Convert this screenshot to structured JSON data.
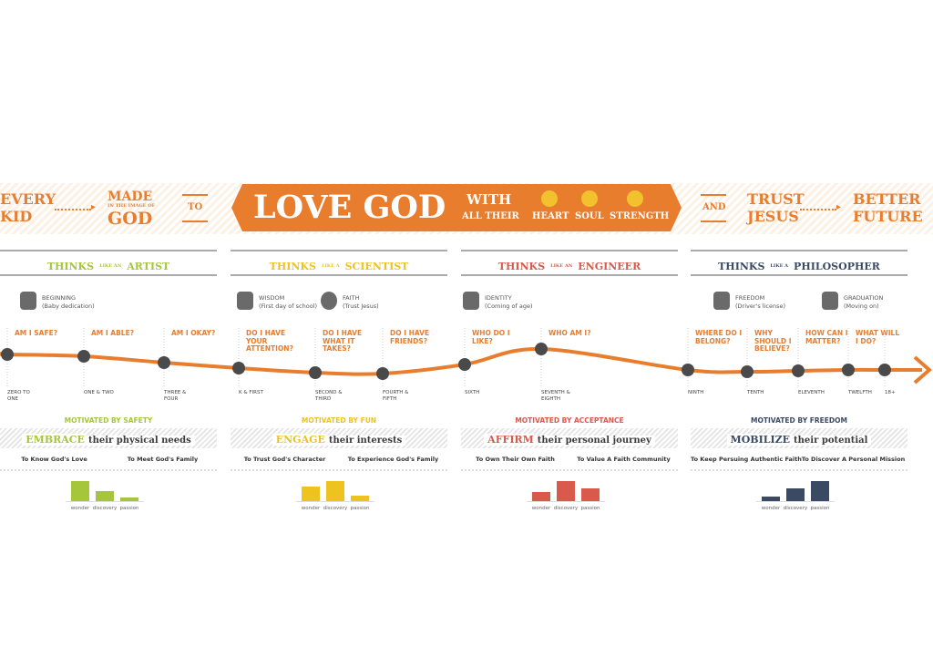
{
  "header": {
    "left_top": "EVERY",
    "left_bottom": "KID",
    "made": "MADE",
    "image_of": "IN THE IMAGE OF",
    "god": "GOD",
    "to": "TO",
    "banner": "LOVE GOD",
    "with": "WITH",
    "all_their": "ALL THEIR",
    "heart": "HEART",
    "soul": "SOUL",
    "strength": "STRENGTH",
    "and": "AND",
    "trust": "TRUST",
    "jesus": "JESUS",
    "better": "BETTER",
    "future": "FUTURE"
  },
  "phases": [
    {
      "thinks": "THINKS",
      "like": "LIKE AN",
      "role": "ARTIST",
      "color": "#a5c63b",
      "milestones": [
        {
          "title": "BEGINNING",
          "note": "(Baby dedication)"
        }
      ],
      "motivation": "MOTIVATED BY SAFETY",
      "verb": "EMBRACE",
      "focus": "their physical needs",
      "goals": [
        "To Know God's Love",
        "To Meet God's Family"
      ],
      "bars": {
        "labels": [
          "wonder",
          "discovery",
          "passion"
        ],
        "values": [
          22,
          11,
          4
        ]
      }
    },
    {
      "thinks": "THINKS",
      "like": "LIKE A",
      "role": "SCIENTIST",
      "color": "#eec21f",
      "milestones": [
        {
          "title": "WISDOM",
          "note": "(First day of school)"
        },
        {
          "title": "FAITH",
          "note": "(Trust Jesus)"
        }
      ],
      "motivation": "MOTIVATED BY FUN",
      "verb": "ENGAGE",
      "focus": "their interests",
      "goals": [
        "To Trust God's Character",
        "To Experience God's Family"
      ],
      "bars": {
        "labels": [
          "wonder",
          "discovery",
          "passion"
        ],
        "values": [
          16,
          22,
          6
        ]
      }
    },
    {
      "thinks": "THINKS",
      "like": "LIKE AN",
      "role": "ENGINEER",
      "color": "#d9594c",
      "milestones": [
        {
          "title": "IDENTITY",
          "note": "(Coming of age)"
        }
      ],
      "motivation": "MOTIVATED BY ACCEPTANCE",
      "verb": "AFFIRM",
      "focus": "their personal journey",
      "goals": [
        "To Own Their Own Faith",
        "To Value A Faith Community"
      ],
      "bars": {
        "labels": [
          "wonder",
          "discovery",
          "passion"
        ],
        "values": [
          10,
          22,
          14
        ]
      }
    },
    {
      "thinks": "THINKS",
      "like": "LIKE A",
      "role": "PHILOSOPHER",
      "color": "#3b4a63",
      "milestones": [
        {
          "title": "FREEDOM",
          "note": "(Driver's license)"
        },
        {
          "title": "GRADUATION",
          "note": "(Moving on)"
        }
      ],
      "motivation": "MOTIVATED BY FREEDOM",
      "verb": "MOBILIZE",
      "focus": "their potential",
      "goals": [
        "To Keep Persuing Authentic Faith",
        "To Discover A Personal Mission"
      ],
      "bars": {
        "labels": [
          "wonder",
          "discovery",
          "passion"
        ],
        "values": [
          5,
          14,
          22
        ]
      }
    }
  ],
  "timeline": [
    {
      "question": "AM I SAFE?",
      "age": "ZERO TO ONE"
    },
    {
      "question": "AM I ABLE?",
      "age": "ONE & TWO"
    },
    {
      "question": "AM I OKAY?",
      "age": "THREE & FOUR"
    },
    {
      "question": "DO I HAVE YOUR ATTENTION?",
      "age": "K & FIRST"
    },
    {
      "question": "DO I HAVE WHAT IT TAKES?",
      "age": "SECOND & THIRD"
    },
    {
      "question": "DO I HAVE FRIENDS?",
      "age": "FOURTH & FIFTH"
    },
    {
      "question": "WHO DO I LIKE?",
      "age": "SIXTH"
    },
    {
      "question": "WHO AM I?",
      "age": "SEVENTH & EIGHTH"
    },
    {
      "question": "WHERE DO I BELONG?",
      "age": "NINTH"
    },
    {
      "question": "WHY SHOULD I BELIEVE?",
      "age": "TENTH"
    },
    {
      "question": "HOW CAN I MATTER?",
      "age": "ELEVENTH"
    },
    {
      "question": "WHAT WILL I DO?",
      "age": "TWELFTH"
    },
    {
      "age": "18+"
    }
  ]
}
